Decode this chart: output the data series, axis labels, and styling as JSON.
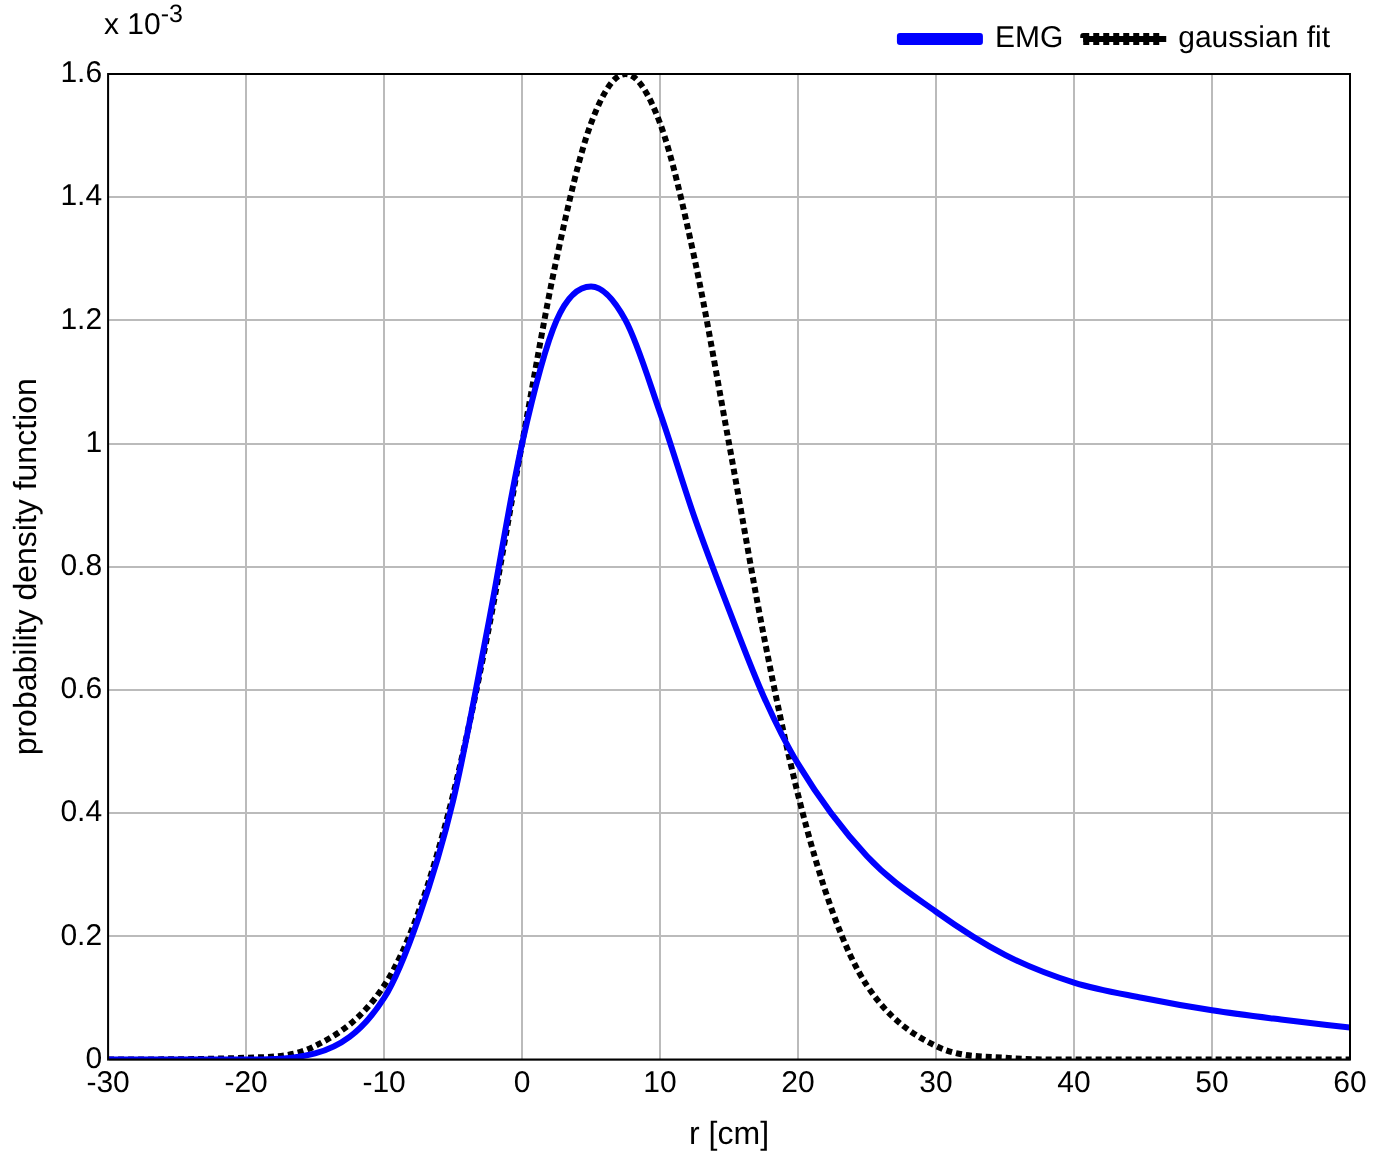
{
  "chart_data": {
    "type": "line",
    "xlabel": "r [cm]",
    "ylabel": "probability density function",
    "annotations": [
      "x 10$^{-3}$"
    ],
    "xlim": [
      -30,
      60
    ],
    "xticks": [
      -30,
      -20,
      -10,
      0,
      10,
      20,
      30,
      40,
      50,
      60
    ],
    "ylim": [
      0,
      1.6
    ],
    "yticks": [
      0,
      0.2,
      0.4,
      0.6,
      0.8,
      1,
      1.2,
      1.4,
      1.6
    ],
    "grid": true,
    "legend": "top right",
    "marker": "none",
    "series": [
      {
        "name": "EMG",
        "color": "#0000ff",
        "line_style": "solid",
        "x": [
          -30,
          -20,
          -15,
          -10,
          -7.5,
          -5,
          -2.5,
          0,
          2.5,
          5,
          7.5,
          10,
          12.5,
          15,
          17.5,
          20,
          25,
          30,
          35,
          40,
          45,
          50,
          55,
          60
        ],
        "values": [
          0,
          0,
          0.01,
          0.1,
          0.23,
          0.42,
          0.7,
          1.0,
          1.2,
          1.255,
          1.2,
          1.05,
          0.88,
          0.73,
          0.59,
          0.48,
          0.33,
          0.24,
          0.17,
          0.125,
          0.1,
          0.08,
          0.065,
          0.052
        ]
      },
      {
        "name": "gaussian fit",
        "color": "#000000",
        "line_style": "dotted",
        "x": [
          -30,
          -20,
          -15,
          -10,
          -7.5,
          -5,
          -2.5,
          0,
          2.5,
          5,
          7.5,
          10,
          12.5,
          15,
          17.5,
          20,
          22.5,
          25,
          30,
          35,
          40,
          60
        ],
        "values": [
          0,
          0.003,
          0.022,
          0.12,
          0.24,
          0.43,
          0.69,
          1.0,
          1.3,
          1.52,
          1.6,
          1.52,
          1.3,
          1.0,
          0.69,
          0.43,
          0.24,
          0.12,
          0.022,
          0.003,
          0,
          0
        ]
      }
    ]
  }
}
